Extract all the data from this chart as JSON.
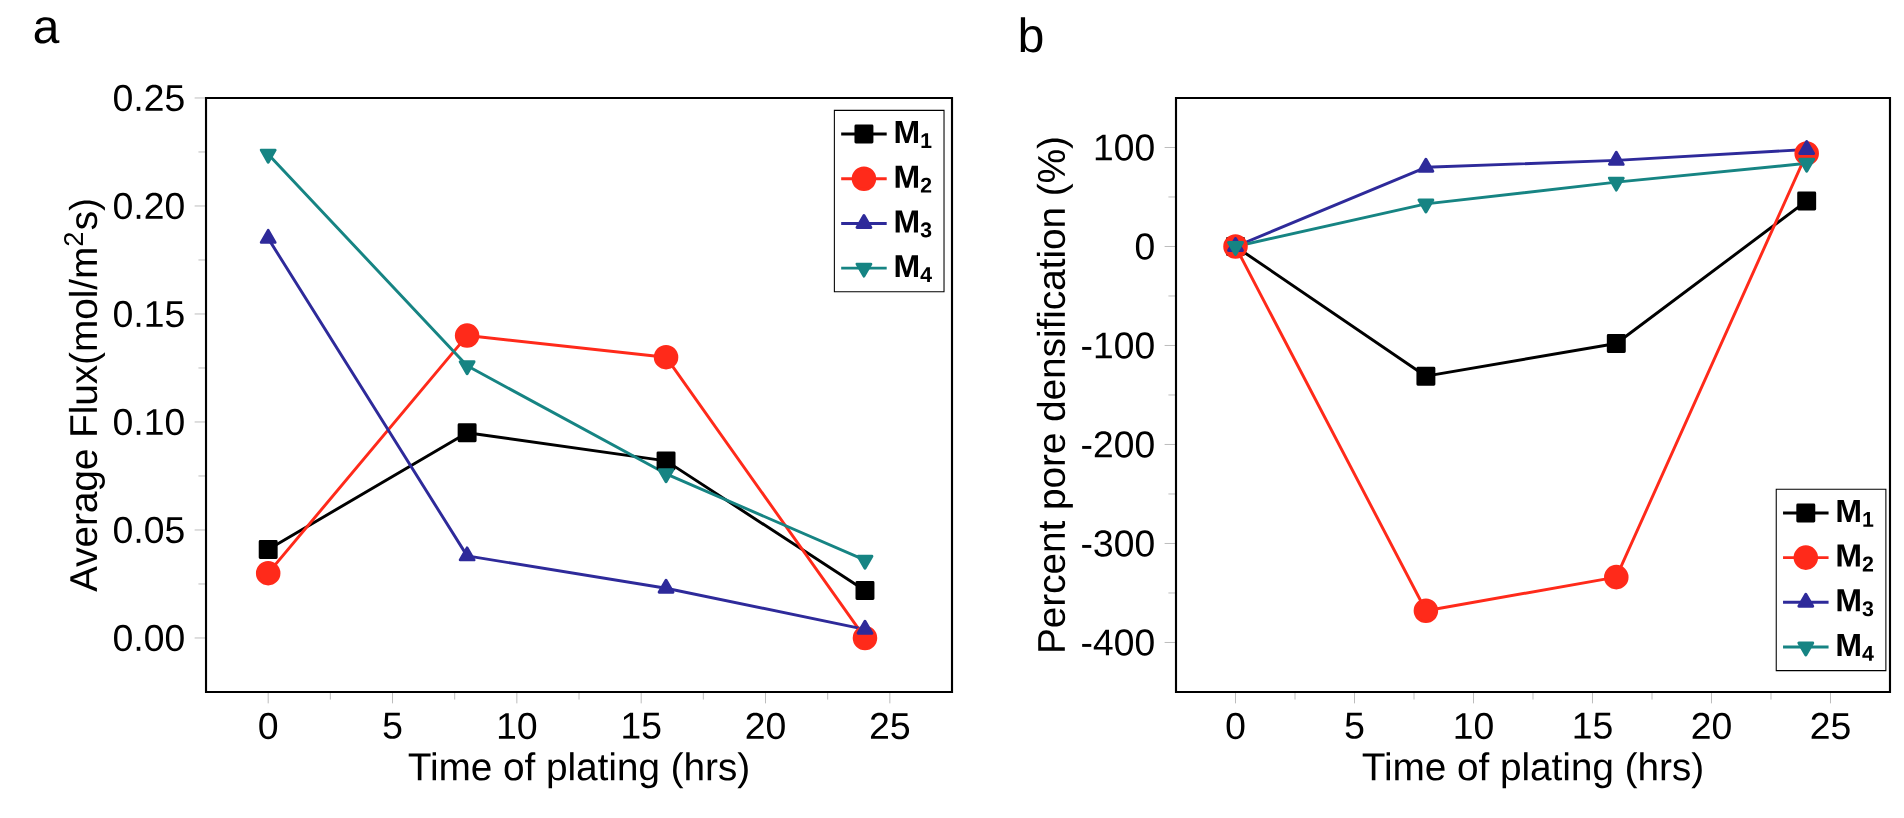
{
  "chart_data": [
    {
      "type": "line",
      "title": "a",
      "xlabel": "Time of plating (hrs)",
      "ylabel": "Average Flux(mol/m$^{2}$s)",
      "x": [
        0,
        8,
        16,
        24
      ],
      "xlim": [
        -2.5,
        27.5
      ],
      "ylim": [
        -0.025,
        0.25
      ],
      "xticks": [
        0,
        5,
        10,
        15,
        20,
        25
      ],
      "yticks": [
        {
          "value": 0,
          "label": "0.00"
        },
        0.05,
        {
          "value": 0.1,
          "label": "0.10"
        },
        0.15,
        {
          "value": 0.2,
          "label": "0.20"
        },
        0.25
      ],
      "legend": "top right",
      "series": [
        {
          "name": "M$_{1}$",
          "color": "#000000",
          "marker": "square",
          "values": [
            0.041,
            0.095,
            0.082,
            0.022
          ]
        },
        {
          "name": "M$_{2}$",
          "color": "#ff2a1a",
          "marker": "circle",
          "values": [
            0.03,
            0.14,
            0.13,
            0.0
          ]
        },
        {
          "name": "M$_{3}$",
          "color": "#2e2a9a",
          "marker": "triangle",
          "values": [
            0.185,
            0.038,
            0.023,
            0.004
          ]
        },
        {
          "name": "M$_{4}$",
          "color": "#168483",
          "marker": "triangle-down",
          "values": [
            0.224,
            0.126,
            0.076,
            0.036
          ]
        }
      ]
    },
    {
      "type": "line",
      "title": "b",
      "xlabel": "Time of plating (hrs)",
      "ylabel": "Percent pore densification (%)",
      "x": [
        0,
        8,
        16,
        24
      ],
      "xlim": [
        -2.5,
        27.5
      ],
      "ylim": [
        -450,
        150
      ],
      "xticks": [
        0,
        5,
        10,
        15,
        20,
        25
      ],
      "yticks": [
        -400,
        -300,
        -200,
        -100,
        0,
        100
      ],
      "legend": "bottom right",
      "series": [
        {
          "name": "M$_{1}$",
          "color": "#000000",
          "marker": "square",
          "values": [
            0,
            -131,
            -98,
            46
          ]
        },
        {
          "name": "M$_{2}$",
          "color": "#ff2a1a",
          "marker": "circle",
          "values": [
            0,
            -368,
            -334,
            94
          ]
        },
        {
          "name": "M$_{3}$",
          "color": "#2e2a9a",
          "marker": "triangle",
          "values": [
            0,
            80,
            87,
            98
          ]
        },
        {
          "name": "M$_{4}$",
          "color": "#168483",
          "marker": "triangle-down",
          "values": [
            0,
            43,
            65,
            84
          ]
        }
      ]
    }
  ]
}
